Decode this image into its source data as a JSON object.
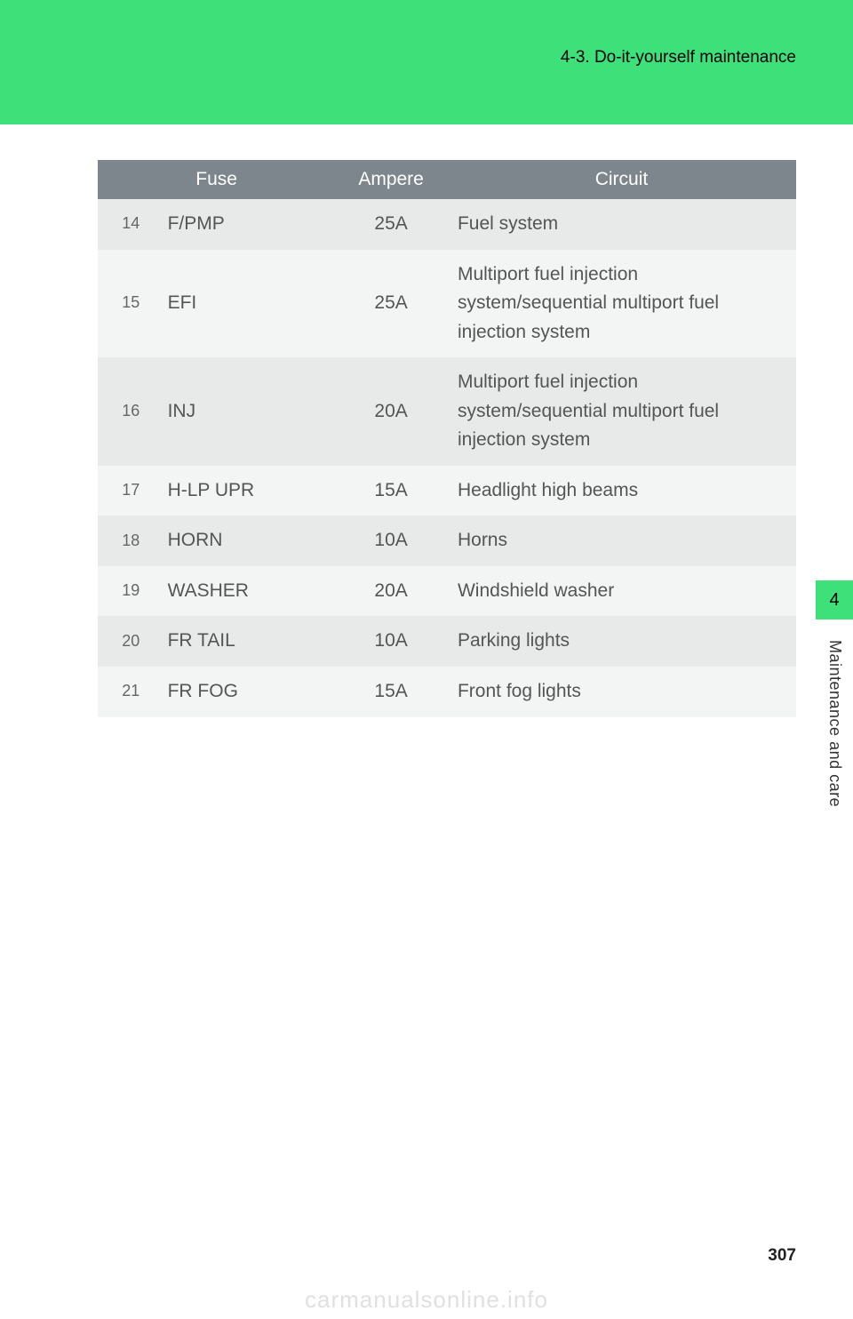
{
  "header": {
    "section_title": "4-3. Do-it-yourself maintenance"
  },
  "side": {
    "tab_number": "4",
    "label": "Maintenance and care"
  },
  "footer": {
    "page_number": "307",
    "watermark": "carmanualsonline.info"
  },
  "colors": {
    "accent": "#3ee07a",
    "table_header_bg": "#7d868c",
    "table_header_fg": "#ffffff",
    "row_odd_bg": "#e8e9e9",
    "row_even_bg": "#f3f4f4",
    "text": "#555555",
    "page_bg": "#ffffff"
  },
  "table": {
    "columns": [
      "Fuse",
      "Ampere",
      "Circuit"
    ],
    "col_widths_pct": [
      34,
      16,
      50
    ],
    "font_size_pt": 16,
    "rows": [
      {
        "num": "14",
        "fuse": "F/PMP",
        "ampere": "25A",
        "circuit": "Fuel system"
      },
      {
        "num": "15",
        "fuse": "EFI",
        "ampere": "25A",
        "circuit": "Multiport fuel injection system/sequential multiport fuel injection system"
      },
      {
        "num": "16",
        "fuse": "INJ",
        "ampere": "20A",
        "circuit": "Multiport fuel injection system/sequential multiport fuel injection system"
      },
      {
        "num": "17",
        "fuse": "H-LP UPR",
        "ampere": "15A",
        "circuit": "Headlight high beams"
      },
      {
        "num": "18",
        "fuse": "HORN",
        "ampere": "10A",
        "circuit": "Horns"
      },
      {
        "num": "19",
        "fuse": "WASHER",
        "ampere": "20A",
        "circuit": "Windshield washer"
      },
      {
        "num": "20",
        "fuse": "FR TAIL",
        "ampere": "10A",
        "circuit": "Parking lights"
      },
      {
        "num": "21",
        "fuse": "FR FOG",
        "ampere": "15A",
        "circuit": "Front fog lights"
      }
    ]
  }
}
